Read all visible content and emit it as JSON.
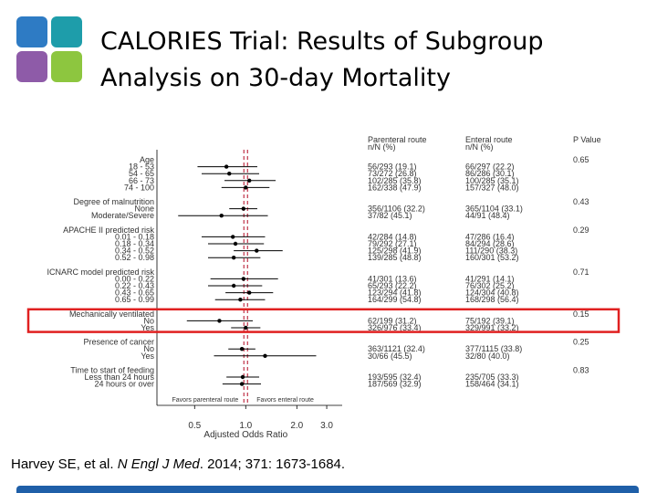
{
  "colors": {
    "logo_blue": "#2E7BC4",
    "logo_teal": "#1E9DAA",
    "logo_purple": "#8E5BA8",
    "logo_green": "#8DC63F",
    "reference_line": "#C0354A",
    "highlight_box": "#E02020",
    "footer_bar": "#1F5FA8",
    "text_gray": "#333333"
  },
  "title": {
    "line1": "CALORIES Trial: Results of Subgroup",
    "line2": "Analysis on 30-day Mortality"
  },
  "citation": {
    "authors": "Harvey SE, et al. ",
    "journal": "N Engl J Med",
    "rest": ". 2014; 371: 1673-1684."
  },
  "chart_data": {
    "type": "forest",
    "xlabel": "Adjusted Odds Ratio",
    "xscale": "log",
    "xlim": [
      0.3,
      3.7
    ],
    "xticks": [
      0.5,
      1.0,
      2.0,
      3.0
    ],
    "xtick_labels": [
      "0.5",
      "1.0",
      "2.0",
      "3.0"
    ],
    "reference_value": 1.0,
    "favors_left": "Favors parenteral route",
    "favors_right": "Favors enteral route",
    "column_headers": {
      "parenteral": [
        "Parenteral route",
        "n/N (%)"
      ],
      "enteral": [
        "Enteral route",
        "n/N (%)"
      ],
      "p": [
        "P Value"
      ]
    },
    "highlight_group": "Mechanically ventilated",
    "groups": [
      {
        "label": "Age",
        "p": "0.65",
        "rows": [
          {
            "label": "18 - 53",
            "or": 0.77,
            "lo": 0.52,
            "hi": 1.17,
            "parenteral": "56/293 (19.1)",
            "enteral": "66/297 (22.2)"
          },
          {
            "label": "54 - 65",
            "or": 0.8,
            "lo": 0.55,
            "hi": 1.2,
            "parenteral": "73/272 (26.8)",
            "enteral": "86/286 (30.1)"
          },
          {
            "label": "66 - 73",
            "or": 1.05,
            "lo": 0.75,
            "hi": 1.5,
            "parenteral": "102/285 (35.8)",
            "enteral": "100/285 (35.1)"
          },
          {
            "label": "74 - 100",
            "or": 1.0,
            "lo": 0.72,
            "hi": 1.38,
            "parenteral": "162/338 (47.9)",
            "enteral": "157/327 (48.0)"
          }
        ]
      },
      {
        "label": "Degree of malnutrition",
        "p": "0.43",
        "rows": [
          {
            "label": "None",
            "or": 0.97,
            "lo": 0.8,
            "hi": 1.17,
            "parenteral": "356/1106 (32.2)",
            "enteral": "365/1104 (33.1)"
          },
          {
            "label": "Moderate/Severe",
            "or": 0.72,
            "lo": 0.4,
            "hi": 1.35,
            "parenteral": "37/82 (45.1)",
            "enteral": "44/91 (48.4)"
          }
        ]
      },
      {
        "label": "APACHE II predicted risk",
        "p": "0.29",
        "rows": [
          {
            "label": "0.01 - 0.18",
            "or": 0.84,
            "lo": 0.55,
            "hi": 1.3,
            "parenteral": "42/284 (14.8)",
            "enteral": "47/286 (16.4)"
          },
          {
            "label": "0.18 - 0.34",
            "or": 0.87,
            "lo": 0.6,
            "hi": 1.28,
            "parenteral": "79/292 (27.1)",
            "enteral": "84/294 (28.6)"
          },
          {
            "label": "0.34 - 0.52",
            "or": 1.16,
            "lo": 0.85,
            "hi": 1.65,
            "parenteral": "125/298 (41.9)",
            "enteral": "111/290 (38.3)"
          },
          {
            "label": "0.52 - 0.98",
            "or": 0.85,
            "lo": 0.6,
            "hi": 1.22,
            "parenteral": "139/285 (48.8)",
            "enteral": "160/301 (53.2)"
          }
        ]
      },
      {
        "label": "ICNARC model predicted risk",
        "p": "0.71",
        "rows": [
          {
            "label": "0.00 - 0.22",
            "or": 0.97,
            "lo": 0.62,
            "hi": 1.55,
            "parenteral": "41/301 (13.6)",
            "enteral": "41/291 (14.1)"
          },
          {
            "label": "0.22 - 0.43",
            "or": 0.85,
            "lo": 0.6,
            "hi": 1.25,
            "parenteral": "65/293 (22.2)",
            "enteral": "76/302 (25.2)"
          },
          {
            "label": "0.43 - 0.65",
            "or": 1.05,
            "lo": 0.76,
            "hi": 1.45,
            "parenteral": "123/294 (41.8)",
            "enteral": "124/304 (40.8)"
          },
          {
            "label": "0.65 - 0.99",
            "or": 0.93,
            "lo": 0.66,
            "hi": 1.3,
            "parenteral": "164/299 (54.8)",
            "enteral": "168/298 (56.4)"
          }
        ]
      },
      {
        "label": "Mechanically ventilated",
        "p": "0.15",
        "rows": [
          {
            "label": "No",
            "or": 0.7,
            "lo": 0.45,
            "hi": 1.1,
            "parenteral": "62/199 (31.2)",
            "enteral": "75/192 (39.1)"
          },
          {
            "label": "Yes",
            "or": 1.0,
            "lo": 0.82,
            "hi": 1.22,
            "parenteral": "326/976 (33.4)",
            "enteral": "329/991 (33.2)"
          }
        ]
      },
      {
        "label": "Presence of cancer",
        "p": "0.25",
        "rows": [
          {
            "label": "No",
            "or": 0.95,
            "lo": 0.79,
            "hi": 1.14,
            "parenteral": "363/1121 (32.4)",
            "enteral": "377/1115 (33.8)"
          },
          {
            "label": "Yes",
            "or": 1.3,
            "lo": 0.65,
            "hi": 2.6,
            "parenteral": "30/66 (45.5)",
            "enteral": "32/80 (40.0)"
          }
        ]
      },
      {
        "label": "Time to start of feeding",
        "p": "0.83",
        "rows": [
          {
            "label": "Less than 24 hours",
            "or": 0.96,
            "lo": 0.77,
            "hi": 1.2,
            "parenteral": "193/595 (32.4)",
            "enteral": "235/705 (33.3)"
          },
          {
            "label": "24 hours or over",
            "or": 0.95,
            "lo": 0.73,
            "hi": 1.23,
            "parenteral": "187/569 (32.9)",
            "enteral": "158/464 (34.1)"
          }
        ]
      }
    ]
  }
}
